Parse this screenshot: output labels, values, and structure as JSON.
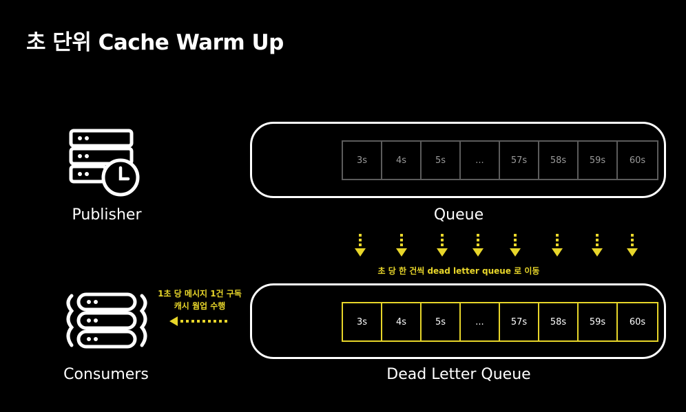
{
  "slide": {
    "title": "초 단위 Cache Warm Up"
  },
  "publisher": {
    "label": "Publisher",
    "icon": "server-clock-icon"
  },
  "consumers": {
    "label": "Consumers",
    "icon": "server-stack-icon"
  },
  "queue": {
    "label": "Queue",
    "cells": [
      "3s",
      "4s",
      "5s",
      "...",
      "57s",
      "58s",
      "59s",
      "60s"
    ],
    "cell_color": "#5c5c5c"
  },
  "dead_letter_queue": {
    "label": "Dead Letter Queue",
    "cells": [
      "3s",
      "4s",
      "5s",
      "...",
      "57s",
      "58s",
      "59s",
      "60s"
    ],
    "cell_color": "#e8d62a"
  },
  "transfer": {
    "caption": "초 당 한 건씩 dead letter queue 로 이동",
    "arrow_color": "#e8d62a"
  },
  "consume": {
    "caption_line1": "1초 당 메시지 1건 구독",
    "caption_line2": "캐시 웜업 수행",
    "arrow_color": "#e8d62a"
  }
}
